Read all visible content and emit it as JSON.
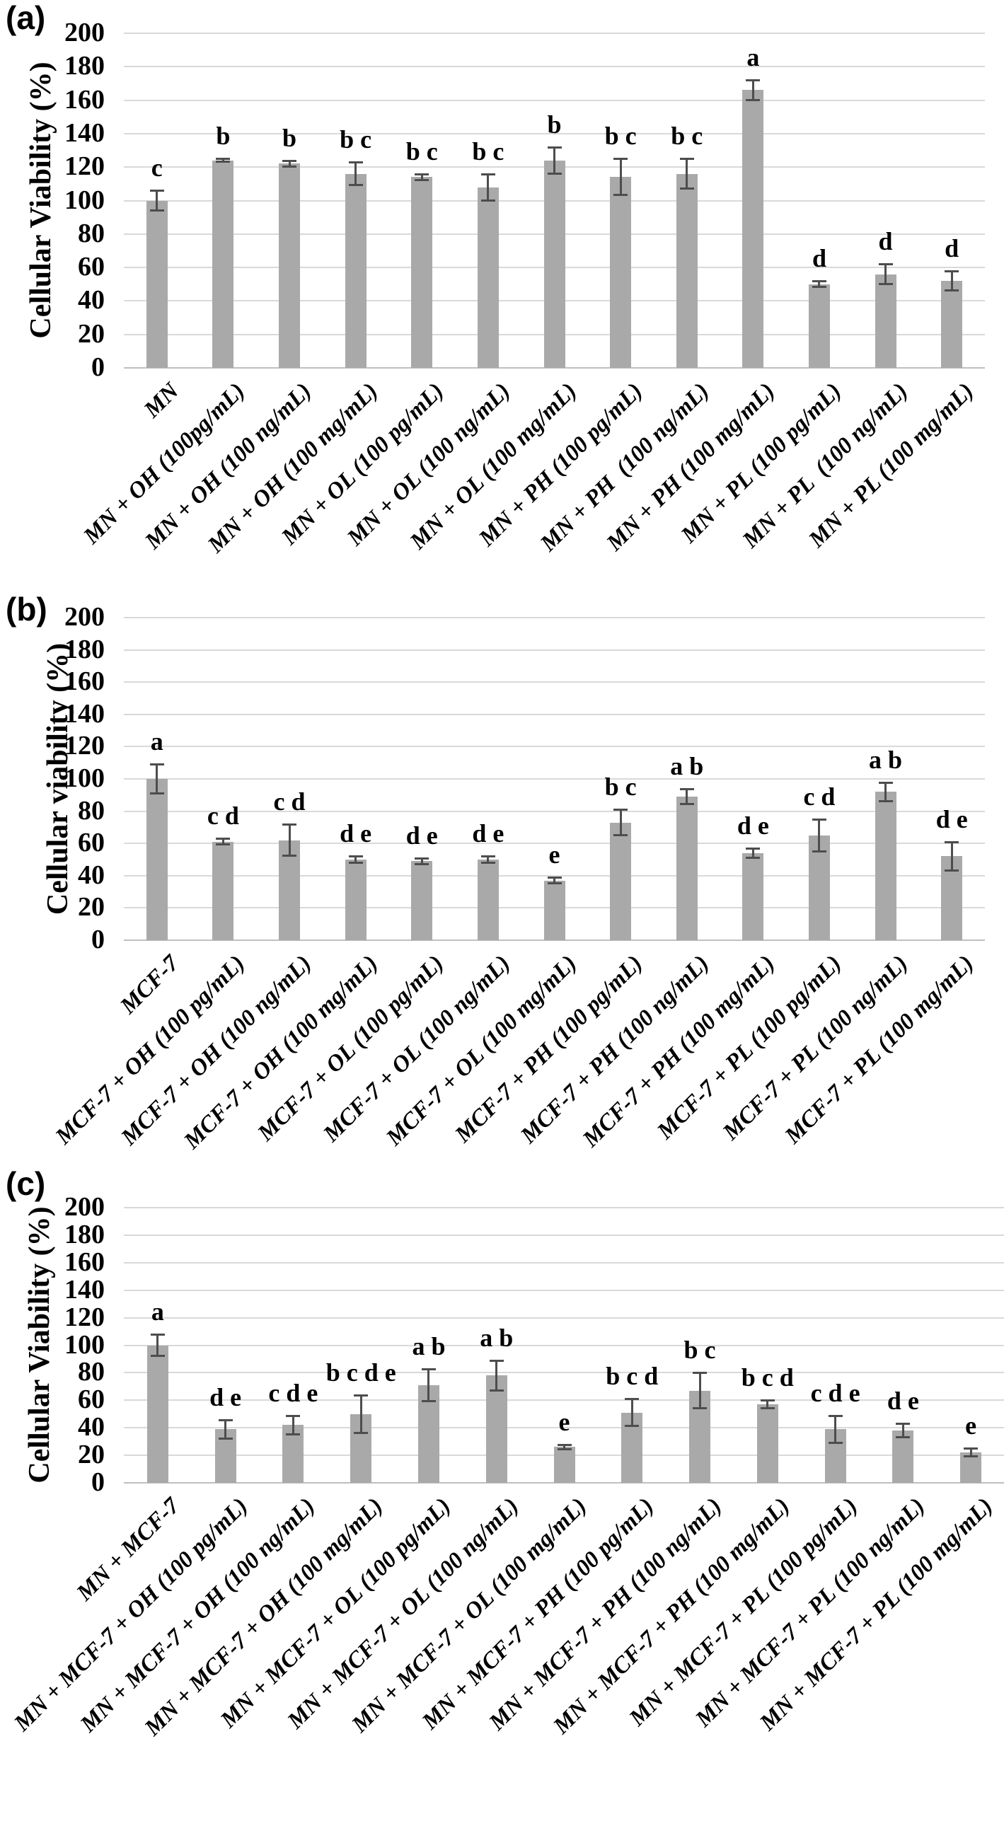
{
  "figure": {
    "background_color": "#ffffff",
    "bar_color": "#a9a9a9",
    "gridline_color": "#d9d9d9",
    "axis_line_color": "#bfbfbf",
    "error_bar_color": "#4d4d4d",
    "text_color": "#000000"
  },
  "chart_data": [
    {
      "type": "bar",
      "panel": "(a)",
      "ylabel": "Cellular Viability (%)",
      "xlabel": "",
      "ylim": [
        0,
        200
      ],
      "yticks": [
        0,
        20,
        40,
        60,
        80,
        100,
        120,
        140,
        160,
        180,
        200
      ],
      "grid": true,
      "legend": "none",
      "categories": [
        "MN",
        "MN + OH (100pg/mL)",
        "MN + OH (100 ng/mL)",
        "MN + OH (100 mg/mL)",
        "MN + OL (100 pg/mL)",
        "MN + OL (100 ng/mL)",
        "MN + OL (100 mg/mL)",
        "MN + PH (100 pg/mL)",
        "MN + PH  (100 ng/mL)",
        "MN + PH (100 mg/mL)",
        "MN + PL (100 pg/mL)",
        "MN + PL  (100 ng/mL)",
        "MN + PL (100 mg/mL)"
      ],
      "values": [
        100,
        124,
        122,
        116,
        114,
        108,
        124,
        114,
        116,
        166,
        50,
        56,
        52
      ],
      "errors": [
        6,
        1,
        2,
        7,
        2,
        8,
        8,
        11,
        9,
        6,
        2,
        6,
        6
      ],
      "sig_letters": [
        "c",
        "b",
        "b",
        "b c",
        "b c",
        "b c",
        "b",
        "b c",
        "b c",
        "a",
        "d",
        "d",
        "d"
      ]
    },
    {
      "type": "bar",
      "panel": "(b)",
      "ylabel": "Cellular viability (%)",
      "xlabel": "",
      "ylim": [
        0,
        200
      ],
      "yticks": [
        0,
        20,
        40,
        60,
        80,
        100,
        120,
        140,
        160,
        180,
        200
      ],
      "grid": true,
      "legend": "none",
      "categories": [
        "MCF-7",
        "MCF-7 + OH (100 pg/mL)",
        "MCF-7 + OH (100 ng/mL)",
        "MCF-7 + OH (100 mg/mL)",
        "MCF-7 + OL (100 pg/mL)",
        "MCF-7 + OL (100 ng/mL)",
        "MCF-7 + OL (100 mg/mL)",
        "MCF-7 + PH (100 pg/mL)",
        "MCF-7 + PH (100 ng/mL)",
        "MCF-7 + PH (100 mg/mL)",
        "MCF-7 + PL (100 pg/mL)",
        "MCF-7 + PL (100 ng/mL)",
        "MCF-7 + PL (100 mg/mL)"
      ],
      "values": [
        100,
        61,
        62,
        50,
        49,
        50,
        37,
        73,
        89,
        54,
        65,
        92,
        52
      ],
      "errors": [
        9,
        2,
        10,
        2,
        2,
        2,
        2,
        8,
        5,
        3,
        10,
        6,
        9
      ],
      "sig_letters": [
        "a",
        "c d",
        "c d",
        "d e",
        "d e",
        "d e",
        "e",
        "b c",
        "a b",
        "d e",
        "c d",
        "a b",
        "d e"
      ]
    },
    {
      "type": "bar",
      "panel": "(c)",
      "ylabel": "Cellular Viability (%)",
      "xlabel": "",
      "ylim": [
        0,
        200
      ],
      "yticks": [
        0,
        20,
        40,
        60,
        80,
        100,
        120,
        140,
        160,
        180,
        200
      ],
      "grid": true,
      "legend": "none",
      "categories": [
        "MN + MCF-7",
        "MN + MCF-7 + OH (100 pg/mL)",
        "MN + MCF-7 + OH (100 ng/mL)",
        "MN + MCF-7 + OH (100 mg/mL)",
        "MN + MCF-7 + OL (100 pg/mL)",
        "MN + MCF-7 + OL (100 ng/mL)",
        "MN + MCF-7 + OL (100 mg/mL)",
        "MN + MCF-7 + PH (100 pg/mL)",
        "MN + MCF-7 + PH (100 ng/mL)",
        "MN + MCF-7 + PH (100 mg/mL)",
        "MN + MCF-7 + PL (100 pg/mL)",
        "MN + MCF-7 + PL (100 ng/mL)",
        "MN + MCF-7 + PL (100 mg/mL)"
      ],
      "values": [
        100,
        39,
        42,
        50,
        71,
        78,
        26,
        51,
        67,
        57,
        39,
        38,
        22
      ],
      "errors": [
        8,
        7,
        7,
        14,
        12,
        11,
        2,
        10,
        13,
        3,
        10,
        5,
        3
      ],
      "sig_letters": [
        "a",
        "d e",
        "c d e",
        "b c d e",
        "a b",
        "a b",
        "e",
        "b c d",
        "b c",
        "b c d",
        "c d e",
        "d e",
        "e"
      ]
    }
  ]
}
